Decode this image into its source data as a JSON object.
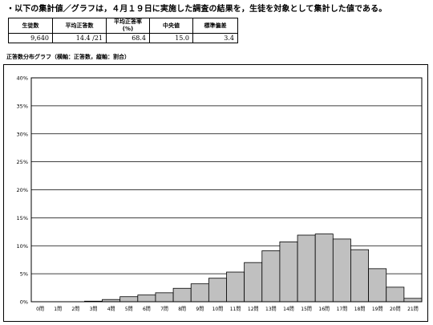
{
  "intro_text": "・以下の集計値／グラフは，４月１９日に実施した調査の結果を，生徒を対象として集計した値である。",
  "stats_table": {
    "headers": [
      "生徒数",
      "平均正答数",
      "平均正答率(%)",
      "中央値",
      "標準偏差"
    ],
    "values": [
      "9,640",
      "14.4 /21",
      "68.4",
      "15.0",
      "3.4"
    ]
  },
  "chart_title": "正答数分布グラフ（横軸：正答数，縦軸：割合）",
  "chart_data": {
    "type": "bar",
    "title": "正答数分布グラフ（横軸：正答数，縦軸：割合）",
    "xlabel": "正答数",
    "ylabel": "割合",
    "categories": [
      "0問",
      "1問",
      "2問",
      "3問",
      "4問",
      "5問",
      "6問",
      "7問",
      "8問",
      "9問",
      "10問",
      "11問",
      "12問",
      "13問",
      "14問",
      "15問",
      "16問",
      "17問",
      "18問",
      "19問",
      "20問",
      "21問"
    ],
    "values": [
      0.0,
      0.0,
      0.0,
      0.1,
      0.4,
      0.9,
      1.2,
      1.6,
      2.4,
      3.2,
      4.2,
      5.3,
      7.0,
      9.1,
      10.7,
      11.9,
      12.1,
      11.2,
      9.3,
      5.9,
      2.6,
      0.6
    ],
    "ylim": [
      0,
      40
    ],
    "yticks": [
      "0%",
      "5%",
      "10%",
      "15%",
      "20%",
      "25%",
      "30%",
      "35%",
      "40%"
    ],
    "grid": true,
    "bar_color": "#c0c0c0"
  }
}
